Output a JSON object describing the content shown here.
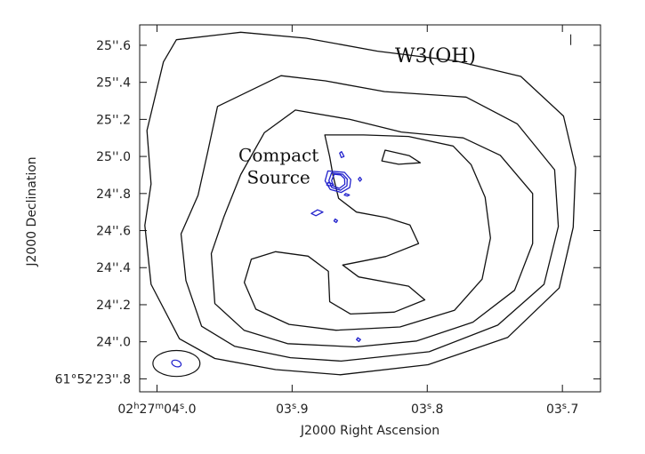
{
  "chart_data": {
    "type": "contour",
    "title": "W3(OH)",
    "xlabel": "J2000 Right Ascension",
    "ylabel": "J2000 Declination",
    "x_ticks": [
      {
        "value": 4.0,
        "parts": [
          {
            "t": "02"
          },
          {
            "t": "h",
            "sup": true
          },
          {
            "t": "27"
          },
          {
            "t": "m",
            "sup": true
          },
          {
            "t": "04"
          },
          {
            "t": "s",
            "sup": true
          },
          {
            "t": ".0"
          }
        ]
      },
      {
        "value": 3.9,
        "parts": [
          {
            "t": "03"
          },
          {
            "t": "s",
            "sup": true
          },
          {
            "t": ".9"
          }
        ]
      },
      {
        "value": 3.8,
        "parts": [
          {
            "t": "03"
          },
          {
            "t": "s",
            "sup": true
          },
          {
            "t": ".8"
          }
        ]
      },
      {
        "value": 3.7,
        "parts": [
          {
            "t": "03"
          },
          {
            "t": "s",
            "sup": true
          },
          {
            "t": ".7"
          }
        ]
      }
    ],
    "y_ticks": [
      {
        "value": 25.6,
        "label": "25''.6"
      },
      {
        "value": 25.4,
        "label": "25''.4"
      },
      {
        "value": 25.2,
        "label": "25''.2"
      },
      {
        "value": 25.0,
        "label": "25''.0"
      },
      {
        "value": 24.8,
        "label": "24''.8"
      },
      {
        "value": 24.6,
        "label": "24''.6"
      },
      {
        "value": 24.4,
        "label": "24''.4"
      },
      {
        "value": 24.2,
        "label": "24''.2"
      },
      {
        "value": 24.0,
        "label": "24''.0"
      },
      {
        "value": 23.8,
        "label": "61°52'23''.8"
      }
    ],
    "xlim": [
      4.0128,
      3.6718
    ],
    "ylim": [
      23.73,
      25.71
    ],
    "grid": false,
    "annotations": [
      {
        "text": "Compact",
        "x": 3.91,
        "y": 24.975
      },
      {
        "text": "Source",
        "x": 3.91,
        "y": 24.855
      }
    ],
    "series": [
      {
        "color": "#111111",
        "points": [
          [
            3.9856,
            25.63
          ],
          [
            3.938,
            25.67
          ],
          [
            3.8896,
            25.638
          ],
          [
            3.8368,
            25.568
          ],
          [
            3.7792,
            25.516
          ],
          [
            3.7308,
            25.432
          ],
          [
            3.6992,
            25.218
          ],
          [
            3.6902,
            24.94
          ],
          [
            3.692,
            24.618
          ],
          [
            3.7024,
            24.29
          ],
          [
            3.7404,
            24.024
          ],
          [
            3.7994,
            23.876
          ],
          [
            3.8644,
            23.822
          ],
          [
            3.9122,
            23.85
          ],
          [
            3.9572,
            23.91
          ],
          [
            3.9834,
            24.016
          ],
          [
            4.0044,
            24.31
          ],
          [
            4.009,
            24.628
          ],
          [
            4.0044,
            24.852
          ],
          [
            4.0074,
            25.14
          ],
          [
            3.9952,
            25.51
          ],
          [
            3.9856,
            25.63
          ]
        ]
      },
      {
        "color": "#111111",
        "points": [
          [
            3.9552,
            25.27
          ],
          [
            3.9082,
            25.436
          ],
          [
            3.8754,
            25.408
          ],
          [
            3.8316,
            25.35
          ],
          [
            3.7712,
            25.32
          ],
          [
            3.7334,
            25.176
          ],
          [
            3.7058,
            24.928
          ],
          [
            3.703,
            24.622
          ],
          [
            3.7136,
            24.31
          ],
          [
            3.7478,
            24.09
          ],
          [
            3.7986,
            23.946
          ],
          [
            3.8636,
            23.896
          ],
          [
            3.9012,
            23.914
          ],
          [
            3.9426,
            23.976
          ],
          [
            3.967,
            24.084
          ],
          [
            3.9786,
            24.33
          ],
          [
            3.9822,
            24.582
          ],
          [
            3.9696,
            24.79
          ],
          [
            3.9626,
            25.02
          ],
          [
            3.9552,
            25.27
          ]
        ]
      },
      {
        "color": "#111111",
        "points": [
          [
            3.8976,
            25.25
          ],
          [
            3.8572,
            25.2
          ],
          [
            3.8192,
            25.132
          ],
          [
            3.7734,
            25.1
          ],
          [
            3.746,
            25.006
          ],
          [
            3.722,
            24.8
          ],
          [
            3.722,
            24.53
          ],
          [
            3.7354,
            24.278
          ],
          [
            3.7662,
            24.106
          ],
          [
            3.8078,
            24.004
          ],
          [
            3.853,
            23.972
          ],
          [
            3.9034,
            23.99
          ],
          [
            3.9356,
            24.062
          ],
          [
            3.9572,
            24.206
          ],
          [
            3.9598,
            24.476
          ],
          [
            3.9504,
            24.676
          ],
          [
            3.938,
            24.902
          ],
          [
            3.9206,
            25.128
          ],
          [
            3.8976,
            25.25
          ]
        ]
      },
      {
        "color": "#111111",
        "points": [
          [
            3.8758,
            25.116
          ],
          [
            3.8472,
            25.116
          ],
          [
            3.8138,
            25.108
          ],
          [
            3.7808,
            25.056
          ],
          [
            3.7676,
            24.956
          ],
          [
            3.7572,
            24.78
          ],
          [
            3.7532,
            24.56
          ],
          [
            3.7594,
            24.338
          ],
          [
            3.7798,
            24.17
          ],
          [
            3.8202,
            24.08
          ],
          [
            3.8676,
            24.062
          ],
          [
            3.9022,
            24.094
          ],
          [
            3.9268,
            24.176
          ],
          [
            3.9354,
            24.32
          ],
          [
            3.9302,
            24.446
          ],
          [
            3.9122,
            24.486
          ],
          [
            3.8882,
            24.462
          ],
          [
            3.8732,
            24.38
          ],
          [
            3.8722,
            24.216
          ],
          [
            3.8568,
            24.15
          ],
          [
            3.8244,
            24.16
          ],
          [
            3.8018,
            24.226
          ],
          [
            3.8138,
            24.3
          ],
          [
            3.8508,
            24.35
          ],
          [
            3.8626,
            24.414
          ],
          [
            3.8306,
            24.46
          ],
          [
            3.8064,
            24.53
          ],
          [
            3.8128,
            24.63
          ],
          [
            3.8304,
            24.67
          ],
          [
            3.8524,
            24.7
          ],
          [
            3.8656,
            24.774
          ],
          [
            3.8698,
            24.9
          ],
          [
            3.8722,
            24.998
          ],
          [
            3.8758,
            25.116
          ]
        ]
      },
      {
        "color": "#111111",
        "points": [
          [
            3.8312,
            25.034
          ],
          [
            3.8132,
            25.004
          ],
          [
            3.8052,
            24.966
          ],
          [
            3.8212,
            24.958
          ],
          [
            3.8336,
            24.976
          ],
          [
            3.8312,
            25.034
          ]
        ]
      },
      {
        "color": "#2222cc",
        "points": [
          [
            3.8688,
            24.904
          ],
          [
            3.864,
            24.9
          ],
          [
            3.8612,
            24.88
          ],
          [
            3.861,
            24.85
          ],
          [
            3.865,
            24.828
          ],
          [
            3.8694,
            24.84
          ],
          [
            3.8708,
            24.87
          ],
          [
            3.8688,
            24.904
          ]
        ]
      },
      {
        "color": "#2222cc",
        "points": [
          [
            3.8708,
            24.912
          ],
          [
            3.8626,
            24.904
          ],
          [
            3.8592,
            24.878
          ],
          [
            3.8594,
            24.842
          ],
          [
            3.8642,
            24.818
          ],
          [
            3.8706,
            24.832
          ],
          [
            3.8728,
            24.87
          ],
          [
            3.8708,
            24.912
          ]
        ]
      },
      {
        "color": "#2222cc",
        "points": [
          [
            3.8736,
            24.922
          ],
          [
            3.8612,
            24.914
          ],
          [
            3.8566,
            24.876
          ],
          [
            3.8574,
            24.832
          ],
          [
            3.8636,
            24.806
          ],
          [
            3.8718,
            24.822
          ],
          [
            3.8756,
            24.868
          ],
          [
            3.8736,
            24.922
          ]
        ]
      },
      {
        "color": "#2222cc",
        "points": [
          [
            3.8734,
            24.86
          ],
          [
            3.8694,
            24.85
          ],
          [
            3.8708,
            24.84
          ],
          [
            3.8744,
            24.846
          ],
          [
            3.8734,
            24.86
          ]
        ]
      },
      {
        "color": "#2222cc",
        "points": [
          [
            3.8604,
            24.8
          ],
          [
            3.8576,
            24.792
          ],
          [
            3.8592,
            24.786
          ],
          [
            3.8614,
            24.792
          ],
          [
            3.8604,
            24.8
          ]
        ]
      },
      {
        "color": "#2222cc",
        "points": [
          [
            3.8812,
            24.712
          ],
          [
            3.8772,
            24.7
          ],
          [
            3.8824,
            24.68
          ],
          [
            3.8858,
            24.692
          ],
          [
            3.8812,
            24.712
          ]
        ]
      },
      {
        "color": "#2222cc",
        "points": [
          [
            3.8682,
            24.662
          ],
          [
            3.8664,
            24.654
          ],
          [
            3.8674,
            24.644
          ],
          [
            3.869,
            24.652
          ],
          [
            3.8682,
            24.662
          ]
        ]
      },
      {
        "color": "#2222cc",
        "points": [
          [
            3.8634,
            25.026
          ],
          [
            3.8616,
            25.0
          ],
          [
            3.8636,
            24.994
          ],
          [
            3.8648,
            25.018
          ],
          [
            3.8634,
            25.026
          ]
        ]
      },
      {
        "color": "#2222cc",
        "points": [
          [
            3.8498,
            24.888
          ],
          [
            3.8486,
            24.876
          ],
          [
            3.8498,
            24.866
          ],
          [
            3.851,
            24.878
          ],
          [
            3.8498,
            24.888
          ]
        ]
      },
      {
        "color": "#2222cc",
        "points": [
          [
            3.8514,
            24.022
          ],
          [
            3.8494,
            24.012
          ],
          [
            3.8506,
            24.002
          ],
          [
            3.8524,
            24.012
          ],
          [
            3.8514,
            24.022
          ]
        ]
      }
    ],
    "beam": {
      "color": "#2222cc",
      "x": 3.9856,
      "y": 23.883,
      "rx": 0.0036,
      "ry": 0.0168,
      "rotate": 20
    },
    "beam_circle": {
      "color": "#111111",
      "x": 3.9856,
      "y": 23.883,
      "rx": 0.0174,
      "ry": 0.07
    },
    "corner_tick": {
      "x": 3.6938,
      "y": 25.63
    }
  }
}
